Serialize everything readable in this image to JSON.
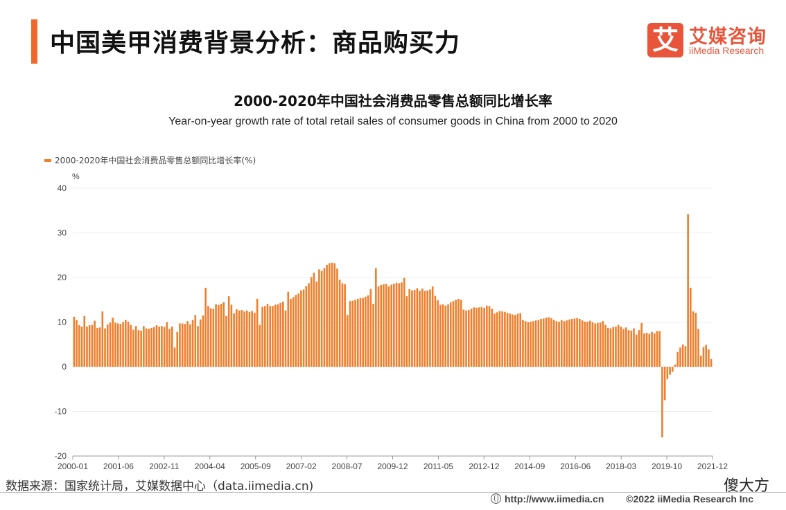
{
  "header": {
    "title": "中国美甲消费背景分析：商品购买力",
    "logo_mark": "艾",
    "logo_cn": "艾媒咨询",
    "logo_en": "iiMedia Research"
  },
  "footer": {
    "source": "数据来源：国家统计局，艾媒数据中心（data.iimedia.cn)",
    "watermark": "傻大方",
    "url": "http://www.iimedia.cn",
    "copyright": "©2022  iiMedia Research  Inc"
  },
  "colors": {
    "accent": "#ee6a2c",
    "bar": "#ee7f2d",
    "logo": "#e8553a"
  },
  "chart_data": {
    "type": "bar",
    "title": "2000-2020年中国社会消费品零售总额同比增长率",
    "subtitle": "Year-on-year growth rate of total retail sales of consumer goods in China from 2000 to 2020",
    "ylabel": "%",
    "legend": "2000-2020年中国社会消费品零售总额同比增长率(%)",
    "legend_position": "top-left",
    "ylim": [
      -20,
      40
    ],
    "yticks": [
      40,
      30,
      20,
      10,
      0,
      -10,
      -20
    ],
    "x_tick_labels": [
      "2000-01",
      "2001-06",
      "2002-11",
      "2004-04",
      "2005-09",
      "2007-02",
      "2008-07",
      "2009-12",
      "2011-05",
      "2012-12",
      "2014-09",
      "2016-06",
      "2018-03",
      "2019-10",
      "2021-12"
    ],
    "grid": true,
    "values": [
      11.2,
      10.5,
      9.3,
      9.0,
      11.4,
      9.0,
      9.3,
      9.4,
      10.3,
      8.7,
      8.8,
      12.4,
      8.6,
      9.5,
      9.9,
      11.0,
      9.9,
      9.7,
      9.6,
      10.0,
      10.5,
      10.1,
      9.4,
      8.3,
      9.1,
      8.2,
      8.1,
      9.1,
      8.6,
      8.5,
      8.7,
      8.9,
      9.3,
      9.0,
      9.1,
      8.9,
      10.0,
      8.5,
      9.0,
      4.3,
      7.8,
      9.7,
      9.7,
      9.6,
      10.2,
      9.5,
      10.5,
      11.6,
      9.1,
      10.6,
      11.5,
      17.7,
      13.6,
      13.1,
      13.0,
      14.0,
      13.8,
      14.1,
      14.5,
      11.4,
      15.8,
      13.9,
      12.0,
      12.9,
      12.6,
      12.7,
      12.4,
      12.6,
      12.3,
      12.5,
      12.1,
      15.2,
      9.4,
      13.4,
      13.6,
      14.1,
      13.6,
      13.6,
      13.9,
      14.0,
      14.3,
      14.6,
      12.6,
      16.8,
      15.2,
      15.6,
      16.1,
      16.4,
      17.1,
      17.3,
      18.1,
      18.7,
      20.1,
      21.1,
      19.1,
      21.8,
      21.5,
      22.1,
      22.8,
      23.2,
      23.3,
      23.2,
      22.0,
      19.5,
      18.7,
      18.5,
      11.6,
      14.7,
      14.8,
      15.0,
      15.2,
      15.4,
      15.4,
      15.7,
      16.0,
      17.4,
      14.1,
      22.1,
      18.0,
      18.3,
      18.5,
      18.6,
      18.0,
      18.4,
      18.6,
      18.8,
      18.7,
      18.9,
      19.9,
      15.8,
      17.4,
      17.1,
      17.2,
      17.6,
      17.0,
      17.5,
      17.0,
      17.1,
      17.3,
      18.0,
      15.9,
      14.9,
      13.9,
      14.0,
      13.7,
      14.0,
      14.4,
      14.7,
      15.0,
      15.2,
      15.0,
      12.8,
      12.6,
      12.7,
      13.0,
      13.3,
      13.2,
      13.3,
      13.4,
      13.2,
      13.7,
      13.6,
      13.0,
      11.9,
      12.2,
      12.5,
      12.4,
      12.3,
      12.1,
      11.9,
      11.7,
      11.6,
      11.9,
      12.0,
      10.5,
      10.2,
      10.0,
      10.1,
      10.2,
      10.4,
      10.5,
      10.7,
      10.8,
      11.0,
      11.1,
      10.9,
      10.5,
      10.2,
      10.1,
      10.5,
      10.2,
      10.4,
      10.6,
      10.7,
      10.8,
      10.9,
      10.7,
      10.4,
      10.1,
      10.1,
      10.3,
      10.0,
      9.7,
      9.8,
      9.9,
      10.2,
      9.4,
      8.7,
      8.6,
      8.9,
      9.0,
      9.4,
      9.0,
      8.5,
      8.8,
      8.2,
      8.1,
      8.6,
      7.2,
      8.2,
      9.8,
      7.5,
      7.6,
      7.4,
      7.8,
      7.5,
      8.0,
      8.0,
      -15.8,
      -7.5,
      -2.8,
      -1.8,
      -1.1,
      0.5,
      3.3,
      4.3,
      5.0,
      4.6,
      34.2,
      17.7,
      12.4,
      12.1,
      8.5,
      2.5,
      4.4,
      4.9,
      3.9,
      1.7
    ]
  }
}
